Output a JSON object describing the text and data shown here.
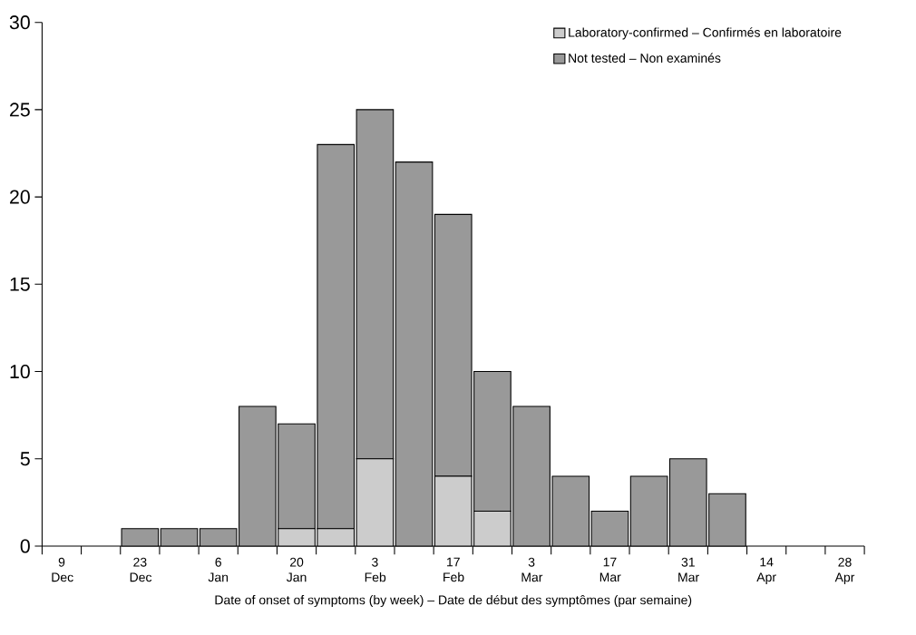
{
  "chart_data": {
    "type": "bar",
    "stacked": true,
    "xlabel": "Date of onset of symptoms (by week) – Date de début des symptômes (par semaine)",
    "categories": [
      "9 Dec",
      null,
      "23 Dec",
      null,
      "6 Jan",
      null,
      "20 Jan",
      null,
      "3 Feb",
      null,
      "17 Feb",
      null,
      "3 Mar",
      null,
      "17 Mar",
      null,
      "31 Mar",
      null,
      "14 Apr",
      null,
      "28 Apr"
    ],
    "series": [
      {
        "name": "Laboratory-confirmed – Confirmés en laboratoire",
        "color": "#cccccc",
        "values": [
          0,
          0,
          0,
          0,
          0,
          0,
          1,
          1,
          5,
          0,
          4,
          2,
          0,
          0,
          0,
          0,
          0,
          0,
          0,
          0,
          0
        ]
      },
      {
        "name": "Not tested – Non examinés",
        "color": "#999999",
        "values": [
          0,
          0,
          1,
          1,
          1,
          8,
          6,
          22,
          20,
          22,
          15,
          8,
          8,
          4,
          2,
          4,
          5,
          3,
          0,
          0,
          0
        ]
      }
    ],
    "ylim": [
      0,
      30
    ],
    "yticks": [
      0,
      5,
      10,
      15,
      20,
      25,
      30
    ],
    "legend": "top right"
  }
}
